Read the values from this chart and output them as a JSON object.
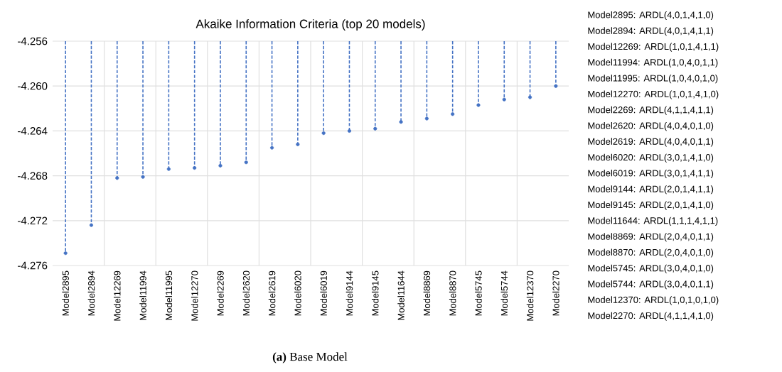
{
  "chart_data": {
    "type": "lollipop",
    "title": "Akaike Information Criteria (top 20 models)",
    "categories": [
      "Model2895",
      "Model2894",
      "Model12269",
      "Model11994",
      "Model11995",
      "Model12270",
      "Model2269",
      "Model2620",
      "Model2619",
      "Model6020",
      "Model6019",
      "Model9144",
      "Model9145",
      "Model11644",
      "Model8869",
      "Model8870",
      "Model5745",
      "Model5744",
      "Model12370",
      "Model2270"
    ],
    "values": [
      -4.2749,
      -4.2724,
      -4.2682,
      -4.2681,
      -4.2674,
      -4.2673,
      -4.2671,
      -4.2668,
      -4.2655,
      -4.2652,
      -4.2642,
      -4.264,
      -4.2638,
      -4.2632,
      -4.2629,
      -4.2625,
      -4.2617,
      -4.2612,
      -4.261,
      -4.26
    ],
    "color": "#4472c4",
    "marker": "circle",
    "line_style": "dashed",
    "grid": true,
    "ylim": [
      -4.276,
      -4.256
    ],
    "yticks": [
      -4.276,
      -4.272,
      -4.268,
      -4.264,
      {
        "value": -4.26,
        "label": "-4.260"
      },
      -4.256
    ],
    "annotations": [
      "Model2895: ARDL(4,0,1,4,1,0)",
      "Model2894: ARDL(4,0,1,4,1,1)",
      "Model12269: ARDL(1,0,1,4,1,1)",
      "Model11994: ARDL(1,0,4,0,1,1)",
      "Model11995: ARDL(1,0,4,0,1,0)",
      "Model12270: ARDL(1,0,1,4,1,0)",
      "Model2269: ARDL(4,1,1,4,1,1)",
      "Model2620: ARDL(4,0,4,0,1,0)",
      "Model2619: ARDL(4,0,4,0,1,1)",
      "Model6020: ARDL(3,0,1,4,1,0)",
      "Model6019: ARDL(3,0,1,4,1,1)",
      "Model9144: ARDL(2,0,1,4,1,1)",
      "Model9145: ARDL(2,0,1,4,1,0)",
      "Model11644: ARDL(1,1,1,4,1,1)",
      "Model8869: ARDL(2,0,4,0,1,1)",
      "Model8870: ARDL(2,0,4,0,1,0)",
      "Model5745: ARDL(3,0,4,0,1,0)",
      "Model5744: ARDL(3,0,4,0,1,1)",
      "Model12370: ARDL(1,0,1,0,1,0)",
      "Model2270: ARDL(4,1,1,4,1,0)",
      "**(a)** Base Model"
    ]
  }
}
